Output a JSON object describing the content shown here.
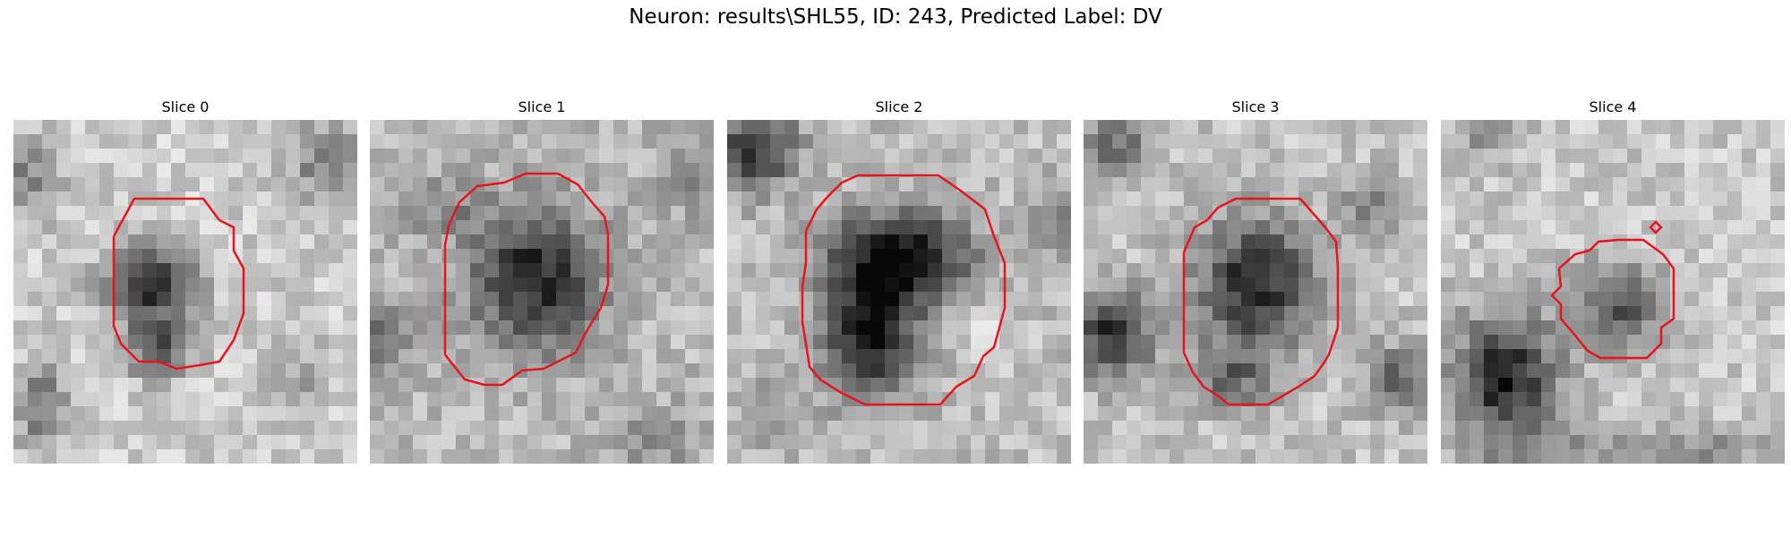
{
  "figure": {
    "title": "Neuron: results\\SHL55, ID: 243, Predicted Label: DV"
  },
  "slices": [
    {
      "title": "Slice 0"
    },
    {
      "title": "Slice 1"
    },
    {
      "title": "Slice 2"
    },
    {
      "title": "Slice 3"
    },
    {
      "title": "Slice 4"
    }
  ],
  "colors": {
    "contour": "#e8141b",
    "background": "#ffffff"
  }
}
